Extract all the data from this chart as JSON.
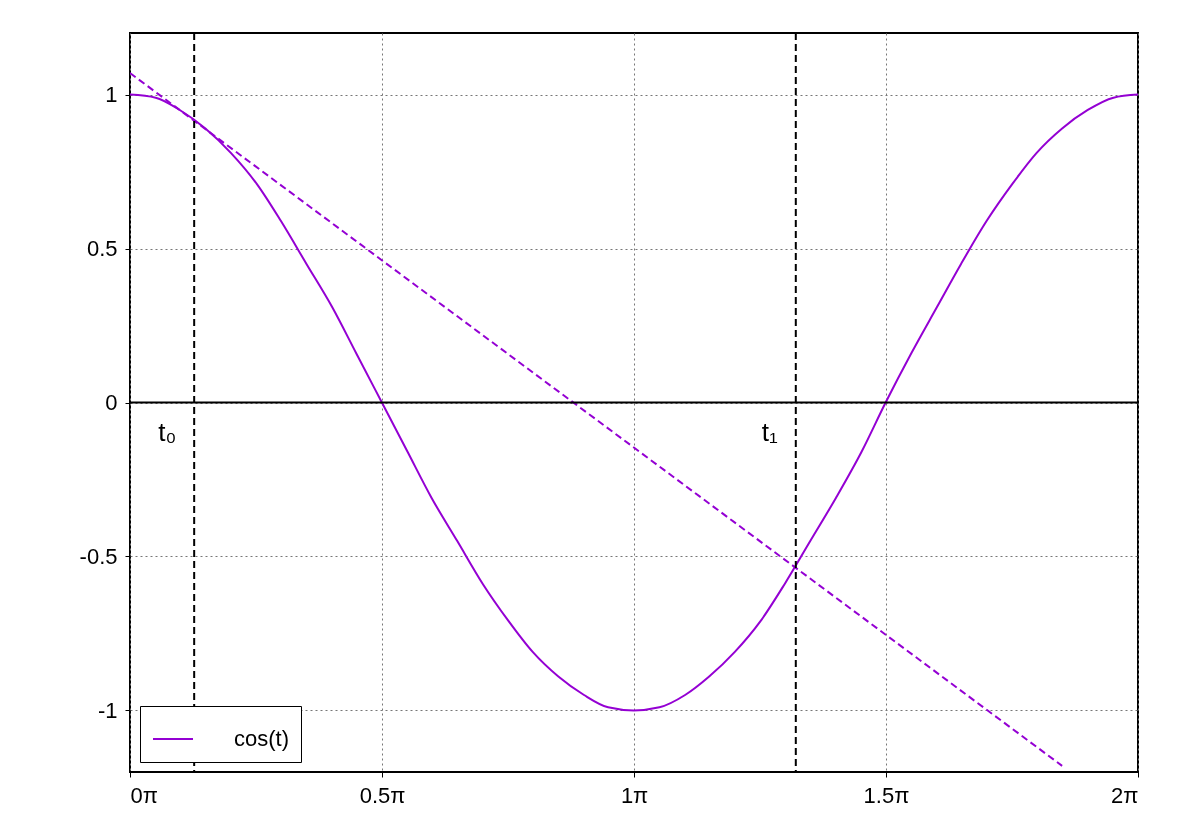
{
  "chart_data": {
    "type": "line",
    "x": [
      0,
      0.16,
      0.31,
      0.47,
      0.63,
      0.79,
      0.94,
      1.1,
      1.26,
      1.41,
      1.57,
      1.73,
      1.88,
      2.04,
      2.2,
      2.36,
      2.51,
      2.67,
      2.83,
      2.98,
      3.14,
      3.3,
      3.46,
      3.61,
      3.77,
      3.93,
      4.08,
      4.24,
      4.4,
      4.56,
      4.71,
      4.87,
      5.03,
      5.18,
      5.34,
      5.5,
      5.65,
      5.81,
      5.97,
      6.13,
      6.283
    ],
    "series": [
      {
        "name": "cos(t)",
        "color": "#9400d3",
        "line_style": "solid",
        "values": [
          1,
          0.99,
          0.95,
          0.89,
          0.81,
          0.71,
          0.59,
          0.45,
          0.31,
          0.16,
          0,
          -0.16,
          -0.31,
          -0.45,
          -0.59,
          -0.71,
          -0.81,
          -0.89,
          -0.95,
          -0.99,
          -1,
          -0.99,
          -0.95,
          -0.89,
          -0.81,
          -0.71,
          -0.59,
          -0.45,
          -0.31,
          -0.16,
          0,
          0.16,
          0.31,
          0.45,
          0.59,
          0.71,
          0.81,
          0.89,
          0.95,
          0.99,
          1
        ]
      },
      {
        "type": "line",
        "color": "#9400d3",
        "line_style": "dashed",
        "x": [
          0,
          5.81
        ],
        "values": [
          1.07,
          -1.18
        ]
      }
    ],
    "xlim": [
      0,
      6.283
    ],
    "xticks": [
      {
        "value": 0,
        "label": "0π"
      },
      {
        "value": 1.571,
        "label": "0.5π"
      },
      {
        "value": 3.142,
        "label": "1π"
      },
      {
        "value": 4.712,
        "label": "1.5π"
      },
      {
        "value": 6.283,
        "label": "2π"
      }
    ],
    "ylim": [
      -1.2,
      1.2
    ],
    "yticks": [
      -1,
      -0.5,
      0,
      0.5,
      1
    ],
    "ref_lines": [
      {
        "axis": "x",
        "value": 0.4,
        "label": "t₀",
        "color": "#000000",
        "line_style": "dashed"
      },
      {
        "axis": "x",
        "value": 4.15,
        "label": "t₁",
        "color": "#000000",
        "line_style": "dashed"
      },
      {
        "axis": "y",
        "value": 0,
        "color": "#000000",
        "line_style": "solid"
      }
    ],
    "grid": true,
    "legend": "bottom left",
    "marker": "none"
  }
}
